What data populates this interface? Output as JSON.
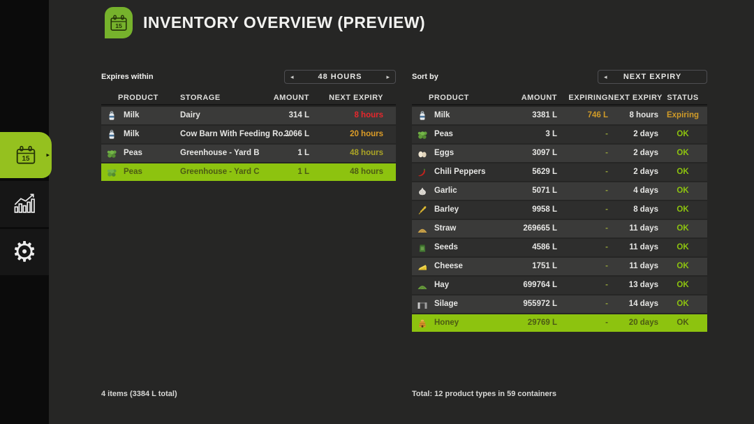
{
  "app": {
    "title": "INVENTORY OVERVIEW (PREVIEW)",
    "header_icon": "calendar-icon",
    "header_icon_label": "15"
  },
  "icons": {
    "arrow-left": "◂",
    "arrow-right": "▸",
    "active-tab-pointer": "▸"
  },
  "sidebar": {
    "items": [
      {
        "id": "inventory",
        "icon": "calendar-icon",
        "icon_label": "15",
        "active": true
      },
      {
        "id": "statistics",
        "icon": "bar-chart-icon",
        "active": false
      },
      {
        "id": "settings",
        "icon": "gear-icon",
        "active": false
      }
    ]
  },
  "left_panel": {
    "filter_label": "Expires within",
    "filter_value": "48 HOURS",
    "columns": [
      "PRODUCT",
      "STORAGE",
      "AMOUNT",
      "NEXT EXPIRY"
    ],
    "rows": [
      {
        "icon": "milk",
        "product": "Milk",
        "storage": "Dairy",
        "amount": "314 L",
        "next_expiry": "8 hours",
        "expiry_color": "#e8272c",
        "selected": false
      },
      {
        "icon": "milk",
        "product": "Milk",
        "storage": "Cow Barn With Feeding Ro...",
        "amount": "3066 L",
        "next_expiry": "20 hours",
        "expiry_color": "#dd9d27",
        "selected": false
      },
      {
        "icon": "peas",
        "product": "Peas",
        "storage": "Greenhouse - Yard B",
        "amount": "1 L",
        "next_expiry": "48 hours",
        "expiry_color": "#aba426",
        "selected": false
      },
      {
        "icon": "peas",
        "product": "Peas",
        "storage": "Greenhouse - Yard C",
        "amount": "1 L",
        "next_expiry": "48 hours",
        "expiry_color": "#aba426",
        "selected": true
      }
    ],
    "footer": "4 items (3384 L total)"
  },
  "right_panel": {
    "sort_label": "Sort by",
    "sort_value": "NEXT EXPIRY",
    "columns": [
      "PRODUCT",
      "AMOUNT",
      "EXPIRING",
      "NEXT EXPIRY",
      "STATUS"
    ],
    "rows": [
      {
        "icon": "milk",
        "product": "Milk",
        "amount": "3381 L",
        "expiring": "746 L",
        "expiring_color": "#d09b28",
        "next_expiry": "8 hours",
        "status": "Expiring",
        "status_color": "#d09b28",
        "selected": false
      },
      {
        "icon": "peas",
        "product": "Peas",
        "amount": "3 L",
        "expiring": "-",
        "next_expiry": "2 days",
        "status": "OK",
        "status_color": "#8dc30f",
        "selected": false
      },
      {
        "icon": "eggs",
        "product": "Eggs",
        "amount": "3097 L",
        "expiring": "-",
        "next_expiry": "2 days",
        "status": "OK",
        "status_color": "#8dc30f",
        "selected": false
      },
      {
        "icon": "chili",
        "product": "Chili Peppers",
        "amount": "5629 L",
        "expiring": "-",
        "next_expiry": "2 days",
        "status": "OK",
        "status_color": "#8dc30f",
        "selected": false
      },
      {
        "icon": "garlic",
        "product": "Garlic",
        "amount": "5071 L",
        "expiring": "-",
        "next_expiry": "4 days",
        "status": "OK",
        "status_color": "#8dc30f",
        "selected": false
      },
      {
        "icon": "barley",
        "product": "Barley",
        "amount": "9958 L",
        "expiring": "-",
        "next_expiry": "8 days",
        "status": "OK",
        "status_color": "#8dc30f",
        "selected": false
      },
      {
        "icon": "straw",
        "product": "Straw",
        "amount": "269665 L",
        "expiring": "-",
        "next_expiry": "11 days",
        "status": "OK",
        "status_color": "#8dc30f",
        "selected": false
      },
      {
        "icon": "seeds",
        "product": "Seeds",
        "amount": "4586 L",
        "expiring": "-",
        "next_expiry": "11 days",
        "status": "OK",
        "status_color": "#8dc30f",
        "selected": false
      },
      {
        "icon": "cheese",
        "product": "Cheese",
        "amount": "1751 L",
        "expiring": "-",
        "next_expiry": "11 days",
        "status": "OK",
        "status_color": "#8dc30f",
        "selected": false
      },
      {
        "icon": "hay",
        "product": "Hay",
        "amount": "699764 L",
        "expiring": "-",
        "next_expiry": "13 days",
        "status": "OK",
        "status_color": "#8dc30f",
        "selected": false
      },
      {
        "icon": "silage",
        "product": "Silage",
        "amount": "955972 L",
        "expiring": "-",
        "next_expiry": "14 days",
        "status": "OK",
        "status_color": "#8dc30f",
        "selected": false
      },
      {
        "icon": "honey",
        "product": "Honey",
        "amount": "29769 L",
        "expiring": "-",
        "next_expiry": "20 days",
        "status": "OK",
        "status_color": "#8dc30f",
        "selected": true
      }
    ],
    "footer": "Total: 12 product types in 59 containers"
  },
  "colors": {
    "background": "#262625",
    "sidebar": "#0b0b0b",
    "accent_green": "#8dc30f",
    "tab_green": "#95c11f",
    "header_icon_green": "#76b22c",
    "row_light": "#3a3a39",
    "row_dark": "#2e2e2d",
    "selected_row_bg": "#8dc30f",
    "selected_row_text": "#4c5a14",
    "expiry_critical": "#e8272c",
    "expiry_warning": "#dd9d27",
    "expiry_soon": "#aba426",
    "status_ok": "#8dc30f",
    "status_expiring": "#d09b28",
    "dash": "#93a03a"
  }
}
